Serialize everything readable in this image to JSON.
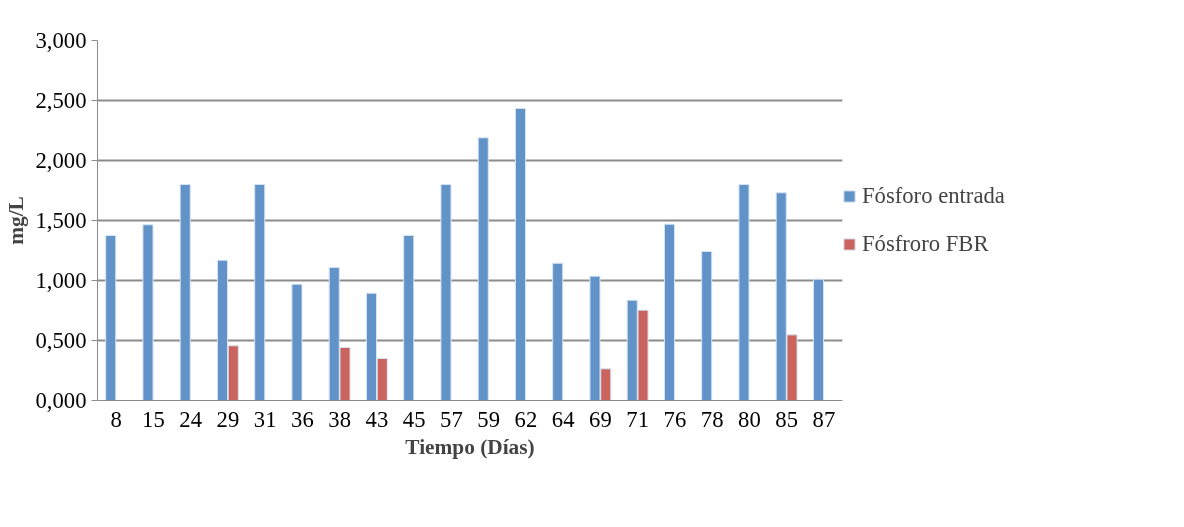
{
  "chart_data": {
    "type": "bar",
    "xlabel": "Tiempo (Días)",
    "ylabel": "mg/L",
    "categories": [
      "8",
      "15",
      "24",
      "29",
      "31",
      "36",
      "38",
      "43",
      "45",
      "57",
      "59",
      "62",
      "64",
      "69",
      "71",
      "76",
      "78",
      "80",
      "85",
      "87"
    ],
    "series": [
      {
        "name": "Fósforo entrada",
        "color": "#6193c8",
        "values": [
          1.375,
          1.464,
          1.8,
          1.169,
          1.8,
          0.969,
          1.108,
          0.894,
          1.375,
          1.8,
          2.189,
          2.433,
          1.144,
          1.036,
          0.836,
          1.469,
          1.242,
          1.8,
          1.731,
          1.011
        ]
      },
      {
        "name": "Fósfroro FBR",
        "color": "#cb635e",
        "values": [
          null,
          null,
          null,
          0.456,
          null,
          null,
          0.442,
          0.35,
          null,
          null,
          null,
          null,
          null,
          0.264,
          0.753,
          null,
          null,
          null,
          0.547,
          null
        ]
      }
    ],
    "ylim": [
      0,
      3
    ],
    "yticks": [
      {
        "value": 0,
        "label": "0,000"
      },
      {
        "value": 0.5,
        "label": "0,500"
      },
      {
        "value": 1,
        "label": "1,000"
      },
      {
        "value": 1.5,
        "label": "1,500"
      },
      {
        "value": 2,
        "label": "2,000"
      },
      {
        "value": 2.5,
        "label": "2,500"
      },
      {
        "value": 3,
        "label": "3,000"
      }
    ],
    "grid": "y",
    "legend": "right"
  }
}
